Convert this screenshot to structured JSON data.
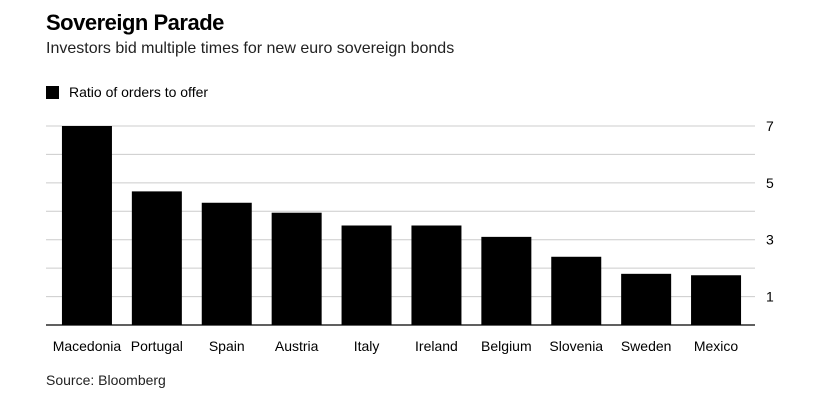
{
  "chart_data": {
    "type": "bar",
    "title": "Sovereign Parade",
    "subtitle": "Investors bid multiple times for new euro sovereign bonds",
    "legend": [
      "Ratio of orders to offer"
    ],
    "categories": [
      "Macedonia",
      "Portugal",
      "Spain",
      "Austria",
      "Italy",
      "Ireland",
      "Belgium",
      "Slovenia",
      "Sweden",
      "Mexico"
    ],
    "values": [
      7.0,
      4.7,
      4.3,
      3.95,
      3.5,
      3.5,
      3.1,
      2.4,
      1.8,
      1.75
    ],
    "ylim": [
      0,
      7
    ],
    "yticks": [
      1,
      3,
      5,
      7
    ],
    "xlabel": "",
    "ylabel": "",
    "grid": true,
    "bar_color": "#000000",
    "grid_color": "#cccccc",
    "source": "Source: Bloomberg"
  }
}
